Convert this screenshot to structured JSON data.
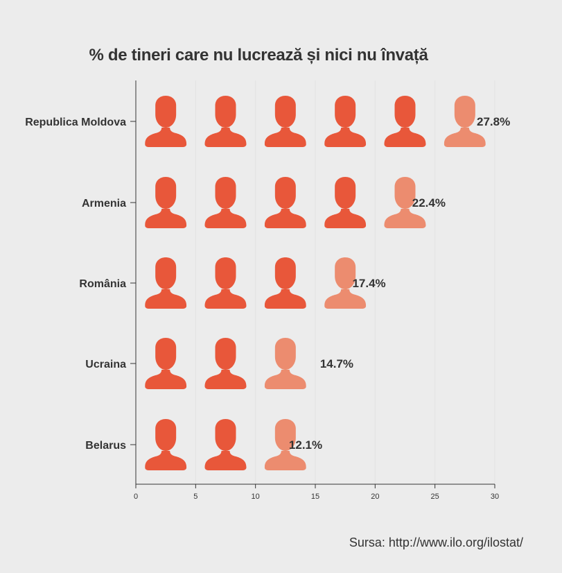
{
  "chart_data": {
    "type": "bar",
    "title": "% de tineri care nu lucrează și nici nu învață",
    "categories": [
      "Republica Moldova",
      "Armenia",
      "România",
      "Ucraina",
      "Belarus"
    ],
    "values": [
      27.8,
      22.4,
      17.4,
      14.7,
      12.1
    ],
    "value_labels": [
      "27.8%",
      "22.4%",
      "17.4%",
      "14.7%",
      "12.1%"
    ],
    "xlim": [
      0,
      30
    ],
    "x_ticks": [
      0,
      5,
      10,
      15,
      20,
      25,
      30
    ],
    "x_tick_labels": [
      "0",
      "5",
      "10",
      "15",
      "20",
      "25",
      "30"
    ],
    "icon_unit": 5,
    "icon": "person-icon",
    "grid": true,
    "xlabel": "",
    "ylabel": ""
  },
  "colors": {
    "background": "#ececec",
    "icon_full": "#e8573a",
    "icon_light": "#ec8c6f",
    "grid": "#e2e2e2",
    "axis": "#333333"
  },
  "source": "Sursa: http://www.ilo.org/ilostat/"
}
